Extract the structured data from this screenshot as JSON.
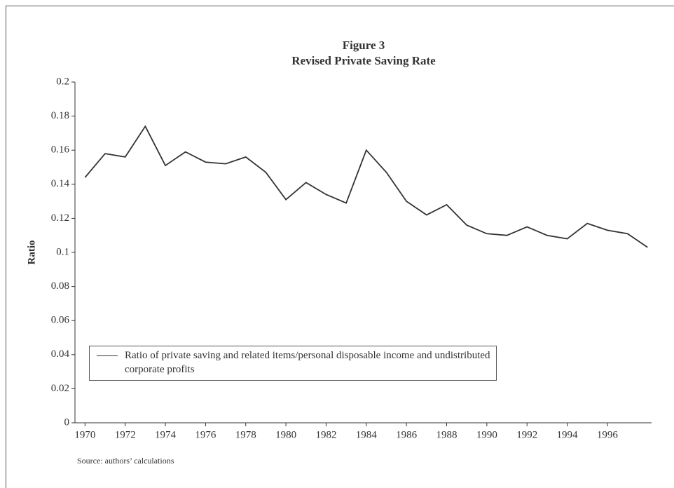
{
  "chart_data": {
    "type": "line",
    "title": "Figure 3",
    "subtitle": "Revised Private Saving Rate",
    "y_label": "Ratio",
    "source": "Source: authors’ calculations",
    "x": [
      1970,
      1971,
      1972,
      1973,
      1974,
      1975,
      1976,
      1977,
      1978,
      1979,
      1980,
      1981,
      1982,
      1983,
      1984,
      1985,
      1986,
      1987,
      1988,
      1989,
      1990,
      1991,
      1992,
      1993,
      1994,
      1995,
      1996,
      1997,
      1998
    ],
    "series": [
      {
        "name": "Ratio of private saving and related items/personal disposable income and undistributed corporate profits",
        "color": "#333333",
        "values": [
          0.144,
          0.158,
          0.156,
          0.174,
          0.151,
          0.159,
          0.153,
          0.152,
          0.156,
          0.147,
          0.131,
          0.141,
          0.134,
          0.129,
          0.16,
          0.147,
          0.13,
          0.122,
          0.128,
          0.116,
          0.111,
          0.11,
          0.115,
          0.11,
          0.108,
          0.117,
          0.113,
          0.111,
          0.103
        ]
      }
    ],
    "xlim": [
      1969.5,
      1998.2
    ],
    "xticks": [
      1970,
      1972,
      1974,
      1976,
      1978,
      1980,
      1982,
      1984,
      1986,
      1988,
      1990,
      1992,
      1994,
      1996
    ],
    "ylim": [
      0,
      0.2
    ],
    "yticks": [
      0,
      0.02,
      0.04,
      0.06,
      0.08,
      0.1,
      0.12,
      0.14,
      0.16,
      0.18,
      0.2
    ],
    "legend": "lower left"
  }
}
